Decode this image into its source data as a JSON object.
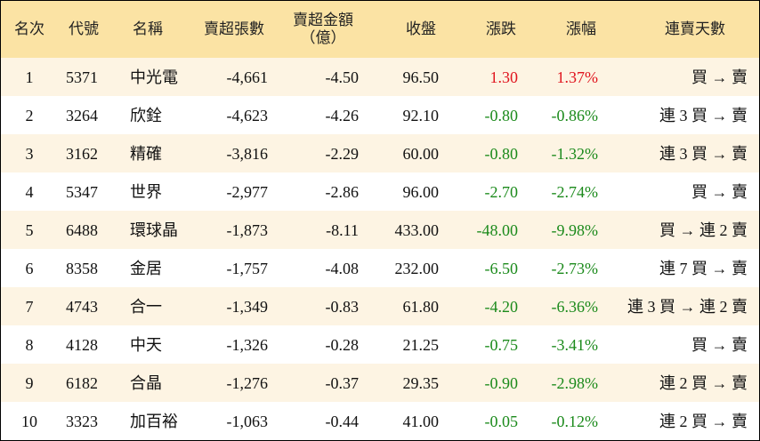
{
  "table": {
    "header": [
      "名次",
      "代號",
      "名稱",
      "賣超張數",
      [
        "賣超金額",
        "（億）"
      ],
      "收盤",
      "漲跌",
      "漲幅",
      "連賣天數"
    ],
    "rows": [
      [
        "1",
        "5371",
        "中光電",
        "-4,661",
        "-4.50",
        "96.50",
        "1.30",
        "1.37%",
        "買 → 賣"
      ],
      [
        "2",
        "3264",
        "欣銓",
        "-4,623",
        "-4.26",
        "92.10",
        "-0.80",
        "-0.86%",
        "連 3 買 → 賣"
      ],
      [
        "3",
        "3162",
        "精確",
        "-3,816",
        "-2.29",
        "60.00",
        "-0.80",
        "-1.32%",
        "連 3 買 → 賣"
      ],
      [
        "4",
        "5347",
        "世界",
        "-2,977",
        "-2.86",
        "96.00",
        "-2.70",
        "-2.74%",
        "買 → 賣"
      ],
      [
        "5",
        "6488",
        "環球晶",
        "-1,873",
        "-8.11",
        "433.00",
        "-48.00",
        "-9.98%",
        "買 → 連 2 賣"
      ],
      [
        "6",
        "8358",
        "金居",
        "-1,757",
        "-4.08",
        "232.00",
        "-6.50",
        "-2.73%",
        "連 7 買 → 賣"
      ],
      [
        "7",
        "4743",
        "合一",
        "-1,349",
        "-0.83",
        "61.80",
        "-4.20",
        "-6.36%",
        "連 3 買 → 連 2 賣"
      ],
      [
        "8",
        "4128",
        "中天",
        "-1,326",
        "-0.28",
        "21.25",
        "-0.75",
        "-3.41%",
        "買 → 賣"
      ],
      [
        "9",
        "6182",
        "合晶",
        "-1,276",
        "-0.37",
        "29.35",
        "-0.90",
        "-2.98%",
        "連 2 買 → 賣"
      ],
      [
        "10",
        "3323",
        "加百裕",
        "-1,063",
        "-0.44",
        "41.00",
        "-0.05",
        "-0.12%",
        "連 2 買 → 賣"
      ]
    ]
  }
}
